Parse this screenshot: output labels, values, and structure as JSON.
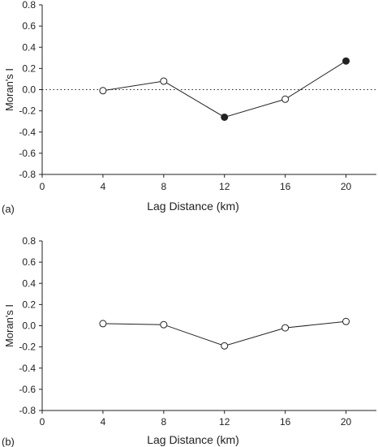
{
  "chart_data": [
    {
      "type": "line",
      "panel_label": "(a)",
      "x": [
        4,
        8,
        12,
        16,
        20
      ],
      "series": [
        {
          "values": [
            -0.01,
            0.08,
            -0.26,
            -0.09,
            0.27
          ],
          "marker_filled": [
            false,
            false,
            true,
            false,
            true
          ]
        }
      ],
      "xlabel": "Lag Distance (km)",
      "ylabel": "Moran's I",
      "xlim": [
        0,
        22
      ],
      "ylim": [
        -0.8,
        0.8
      ],
      "xticks": [
        0,
        4,
        8,
        12,
        16,
        20
      ],
      "xtick_labels": [
        "0",
        "4",
        "8",
        "12",
        "16",
        "20"
      ],
      "yticks": [
        -0.8,
        -0.6,
        -0.4,
        -0.2,
        0.0,
        0.2,
        0.4,
        0.6,
        0.8
      ],
      "ytick_labels": [
        "-0.8",
        "-0.6",
        "-0.4",
        "-0.2",
        "0.0",
        "0.2",
        "0.4",
        "0.6",
        "0.8"
      ],
      "reference_line_y": 0,
      "grid": false
    },
    {
      "type": "line",
      "panel_label": "(b)",
      "x": [
        4,
        8,
        12,
        16,
        20
      ],
      "series": [
        {
          "values": [
            0.02,
            0.01,
            -0.19,
            -0.02,
            0.04
          ],
          "marker_filled": [
            false,
            false,
            false,
            false,
            false
          ]
        }
      ],
      "xlabel": "Lag Distance (km)",
      "ylabel": "Moran's I",
      "xlim": [
        0,
        22
      ],
      "ylim": [
        -0.8,
        0.8
      ],
      "xticks": [
        0,
        4,
        8,
        12,
        16,
        20
      ],
      "xtick_labels": [
        "0",
        "4",
        "8",
        "12",
        "16",
        "20"
      ],
      "yticks": [
        -0.8,
        -0.6,
        -0.4,
        -0.2,
        0.0,
        0.2,
        0.4,
        0.6,
        0.8
      ],
      "ytick_labels": [
        "-0.8",
        "-0.6",
        "-0.4",
        "-0.2",
        "0.0",
        "0.2",
        "0.4",
        "0.6",
        "0.8"
      ],
      "grid": false
    }
  ],
  "colors": {
    "line": "#222222",
    "marker_fill_solid": "#222222",
    "marker_fill_open": "#ffffff"
  }
}
